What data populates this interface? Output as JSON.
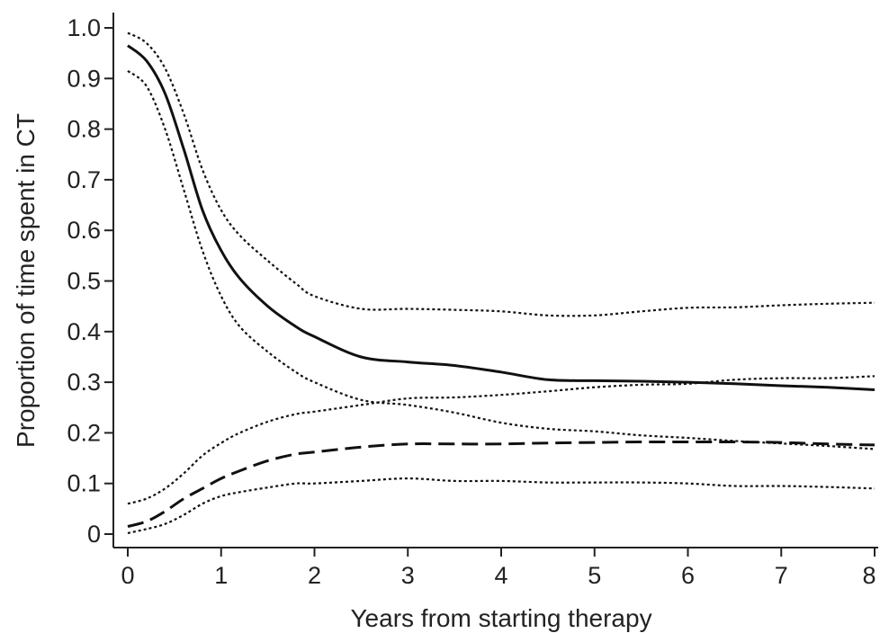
{
  "chart_data": {
    "type": "line",
    "title": "",
    "xlabel": "Years from starting therapy",
    "ylabel": "Proportion of time spent in CT",
    "xlim": [
      0,
      8
    ],
    "ylim": [
      0,
      1.0
    ],
    "x_ticks": [
      0,
      1,
      2,
      3,
      4,
      5,
      6,
      7,
      8
    ],
    "y_ticks": [
      0,
      0.1,
      0.2,
      0.3,
      0.4,
      0.5,
      0.6,
      0.7,
      0.8,
      0.9,
      1.0
    ],
    "x_tick_labels": [
      "0",
      "1",
      "2",
      "3",
      "4",
      "5",
      "6",
      "7",
      "8"
    ],
    "y_tick_labels": [
      "0",
      "0.1",
      "0.2",
      "0.3",
      "0.4",
      "0.5",
      "0.6",
      "0.7",
      "0.8",
      "0.9",
      "1.0"
    ],
    "grid": false,
    "legend": "none",
    "series": [
      {
        "style": "solid",
        "points": [
          [
            0,
            0.965
          ],
          [
            0.2,
            0.935
          ],
          [
            0.4,
            0.87
          ],
          [
            0.6,
            0.76
          ],
          [
            0.8,
            0.64
          ],
          [
            1.0,
            0.56
          ],
          [
            1.2,
            0.505
          ],
          [
            1.5,
            0.45
          ],
          [
            1.8,
            0.41
          ],
          [
            2.0,
            0.39
          ],
          [
            2.5,
            0.35
          ],
          [
            3.0,
            0.34
          ],
          [
            3.5,
            0.333
          ],
          [
            4.0,
            0.32
          ],
          [
            4.5,
            0.305
          ],
          [
            5.0,
            0.303
          ],
          [
            5.5,
            0.302
          ],
          [
            6.0,
            0.3
          ],
          [
            6.5,
            0.297
          ],
          [
            7.0,
            0.293
          ],
          [
            7.5,
            0.29
          ],
          [
            8.0,
            0.285
          ]
        ]
      },
      {
        "style": "dotted",
        "points": [
          [
            0,
            0.99
          ],
          [
            0.2,
            0.97
          ],
          [
            0.4,
            0.92
          ],
          [
            0.6,
            0.83
          ],
          [
            0.8,
            0.72
          ],
          [
            1.0,
            0.64
          ],
          [
            1.2,
            0.59
          ],
          [
            1.5,
            0.54
          ],
          [
            1.8,
            0.495
          ],
          [
            2.0,
            0.47
          ],
          [
            2.5,
            0.445
          ],
          [
            3.0,
            0.445
          ],
          [
            3.5,
            0.443
          ],
          [
            4.0,
            0.44
          ],
          [
            4.5,
            0.432
          ],
          [
            5.0,
            0.432
          ],
          [
            5.5,
            0.44
          ],
          [
            6.0,
            0.447
          ],
          [
            6.5,
            0.448
          ],
          [
            7.0,
            0.452
          ],
          [
            7.5,
            0.455
          ],
          [
            8.0,
            0.457
          ]
        ]
      },
      {
        "style": "dotted",
        "points": [
          [
            0,
            0.915
          ],
          [
            0.2,
            0.885
          ],
          [
            0.4,
            0.8
          ],
          [
            0.6,
            0.68
          ],
          [
            0.8,
            0.56
          ],
          [
            1.0,
            0.47
          ],
          [
            1.2,
            0.41
          ],
          [
            1.5,
            0.36
          ],
          [
            1.8,
            0.32
          ],
          [
            2.0,
            0.3
          ],
          [
            2.5,
            0.265
          ],
          [
            3.0,
            0.255
          ],
          [
            3.5,
            0.24
          ],
          [
            4.0,
            0.22
          ],
          [
            4.5,
            0.208
          ],
          [
            5.0,
            0.203
          ],
          [
            5.5,
            0.195
          ],
          [
            6.0,
            0.19
          ],
          [
            6.5,
            0.184
          ],
          [
            7.0,
            0.179
          ],
          [
            7.5,
            0.174
          ],
          [
            8.0,
            0.168
          ]
        ]
      },
      {
        "style": "dashed",
        "points": [
          [
            0,
            0.015
          ],
          [
            0.2,
            0.025
          ],
          [
            0.4,
            0.045
          ],
          [
            0.6,
            0.07
          ],
          [
            0.8,
            0.09
          ],
          [
            1.0,
            0.11
          ],
          [
            1.2,
            0.125
          ],
          [
            1.5,
            0.145
          ],
          [
            1.8,
            0.158
          ],
          [
            2.0,
            0.162
          ],
          [
            2.5,
            0.172
          ],
          [
            3.0,
            0.178
          ],
          [
            3.5,
            0.178
          ],
          [
            4.0,
            0.178
          ],
          [
            4.5,
            0.18
          ],
          [
            5.0,
            0.181
          ],
          [
            5.5,
            0.182
          ],
          [
            6.0,
            0.182
          ],
          [
            6.5,
            0.182
          ],
          [
            7.0,
            0.181
          ],
          [
            7.5,
            0.178
          ],
          [
            8.0,
            0.176
          ]
        ]
      },
      {
        "style": "dotted",
        "points": [
          [
            0,
            0.06
          ],
          [
            0.2,
            0.07
          ],
          [
            0.4,
            0.09
          ],
          [
            0.6,
            0.12
          ],
          [
            0.8,
            0.155
          ],
          [
            1.0,
            0.18
          ],
          [
            1.2,
            0.2
          ],
          [
            1.5,
            0.222
          ],
          [
            1.8,
            0.237
          ],
          [
            2.0,
            0.242
          ],
          [
            2.5,
            0.255
          ],
          [
            3.0,
            0.268
          ],
          [
            3.5,
            0.27
          ],
          [
            4.0,
            0.275
          ],
          [
            4.5,
            0.282
          ],
          [
            5.0,
            0.29
          ],
          [
            5.5,
            0.295
          ],
          [
            6.0,
            0.297
          ],
          [
            6.5,
            0.305
          ],
          [
            7.0,
            0.308
          ],
          [
            7.5,
            0.308
          ],
          [
            8.0,
            0.312
          ]
        ]
      },
      {
        "style": "dotted",
        "points": [
          [
            0,
            0.002
          ],
          [
            0.2,
            0.01
          ],
          [
            0.4,
            0.02
          ],
          [
            0.6,
            0.038
          ],
          [
            0.8,
            0.06
          ],
          [
            1.0,
            0.075
          ],
          [
            1.2,
            0.083
          ],
          [
            1.5,
            0.092
          ],
          [
            1.8,
            0.1
          ],
          [
            2.0,
            0.1
          ],
          [
            2.5,
            0.105
          ],
          [
            3.0,
            0.11
          ],
          [
            3.5,
            0.105
          ],
          [
            4.0,
            0.105
          ],
          [
            4.5,
            0.102
          ],
          [
            5.0,
            0.102
          ],
          [
            5.5,
            0.102
          ],
          [
            6.0,
            0.1
          ],
          [
            6.5,
            0.095
          ],
          [
            7.0,
            0.095
          ],
          [
            7.5,
            0.093
          ],
          [
            8.0,
            0.09
          ]
        ]
      }
    ]
  }
}
